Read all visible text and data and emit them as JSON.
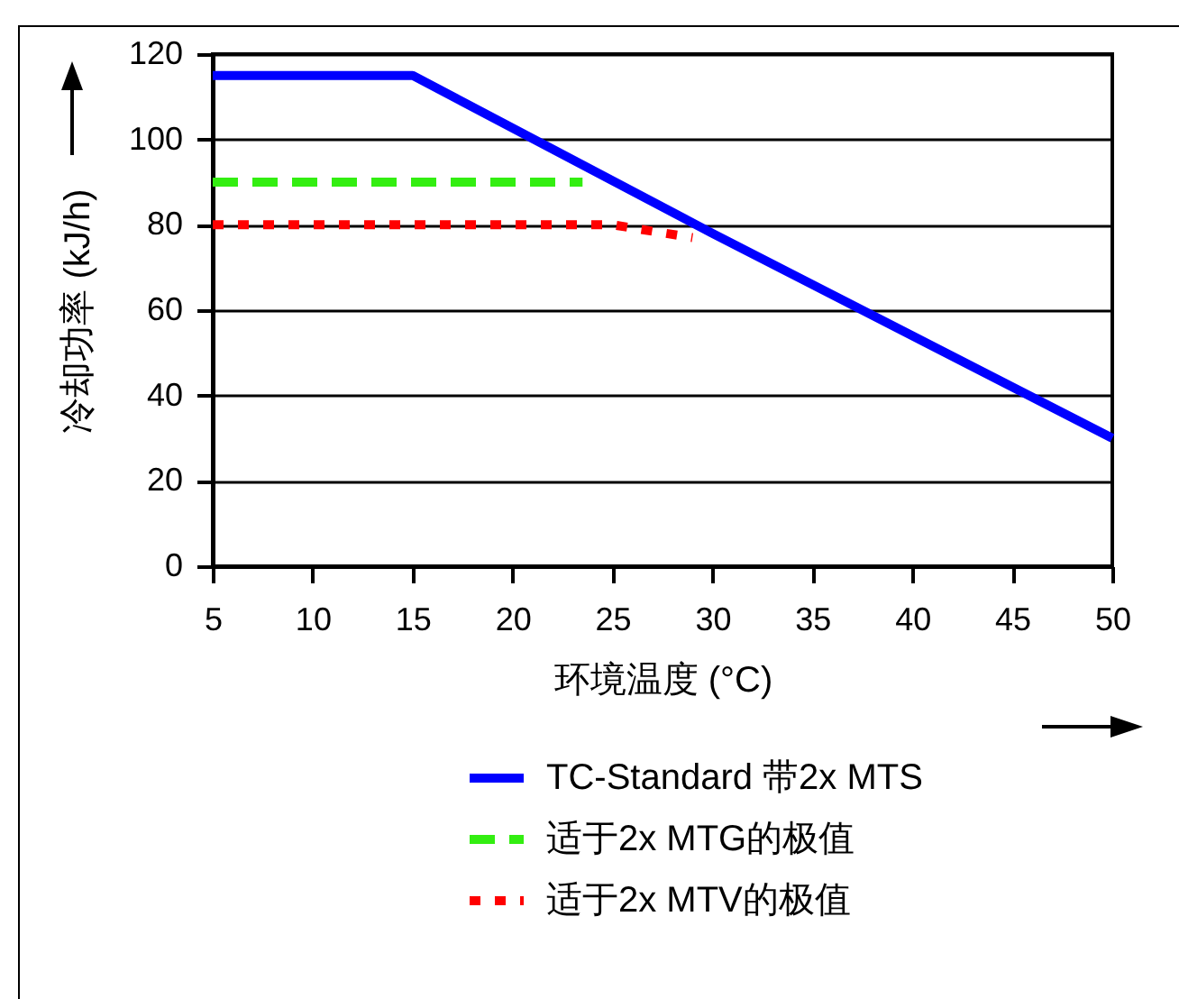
{
  "chart_data": {
    "type": "line",
    "xlabel": "环境温度 (°C)",
    "ylabel": "冷却功率 (kJ/h)",
    "xlim": [
      5,
      50
    ],
    "xticks": [
      5,
      10,
      15,
      20,
      25,
      30,
      35,
      40,
      45,
      50
    ],
    "ylim": [
      0,
      120
    ],
    "yticks": [
      0,
      20,
      40,
      60,
      80,
      100,
      120
    ],
    "grid": "y",
    "legend": "bottom",
    "marker": "none",
    "series": [
      {
        "name": "TC-Standard 带2x MTS",
        "color": "#0000ff",
        "line_style": "solid",
        "x": [
          5,
          15,
          30,
          35,
          50
        ],
        "values": [
          115,
          115,
          78,
          66,
          30
        ]
      },
      {
        "name": "适于2x MTG的极值",
        "color": "#33ee11",
        "line_style": "dashed",
        "x": [
          5,
          23.5
        ],
        "values": [
          90,
          90
        ]
      },
      {
        "name": "适于2x MTV的极值",
        "color": "#ff0000",
        "line_style": "dotted",
        "x": [
          5,
          25,
          29
        ],
        "values": [
          80,
          80,
          77
        ]
      }
    ]
  }
}
